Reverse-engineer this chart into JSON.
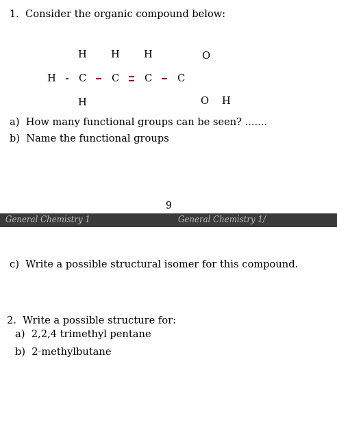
{
  "title_text": "1.  Consider the organic compound below:",
  "question_a": "a)  How many functional groups can be seen? .......",
  "question_b": "b)  Name the functional groups",
  "page_number": "9",
  "footer_text_left": "General Chemistry 1",
  "footer_text_right": "General Chemistry 1/",
  "question_c": "c)  Write a possible structural isomer for this compound.",
  "question_2": "2.  Write a possible structure for:",
  "question_2a": "a)  2,2,4 trimethyl pentane",
  "question_2b": "b)  2-methylbutane",
  "bg_color": "#ffffff",
  "footer_bg": "#3a3a3a",
  "footer_text_color": "#c0c0c0",
  "text_color": "#000000",
  "bond_color": "#8B1010",
  "atom_color": "#000000",
  "fig_w": 4.92,
  "fig_h": 6.36,
  "dpi": 100
}
